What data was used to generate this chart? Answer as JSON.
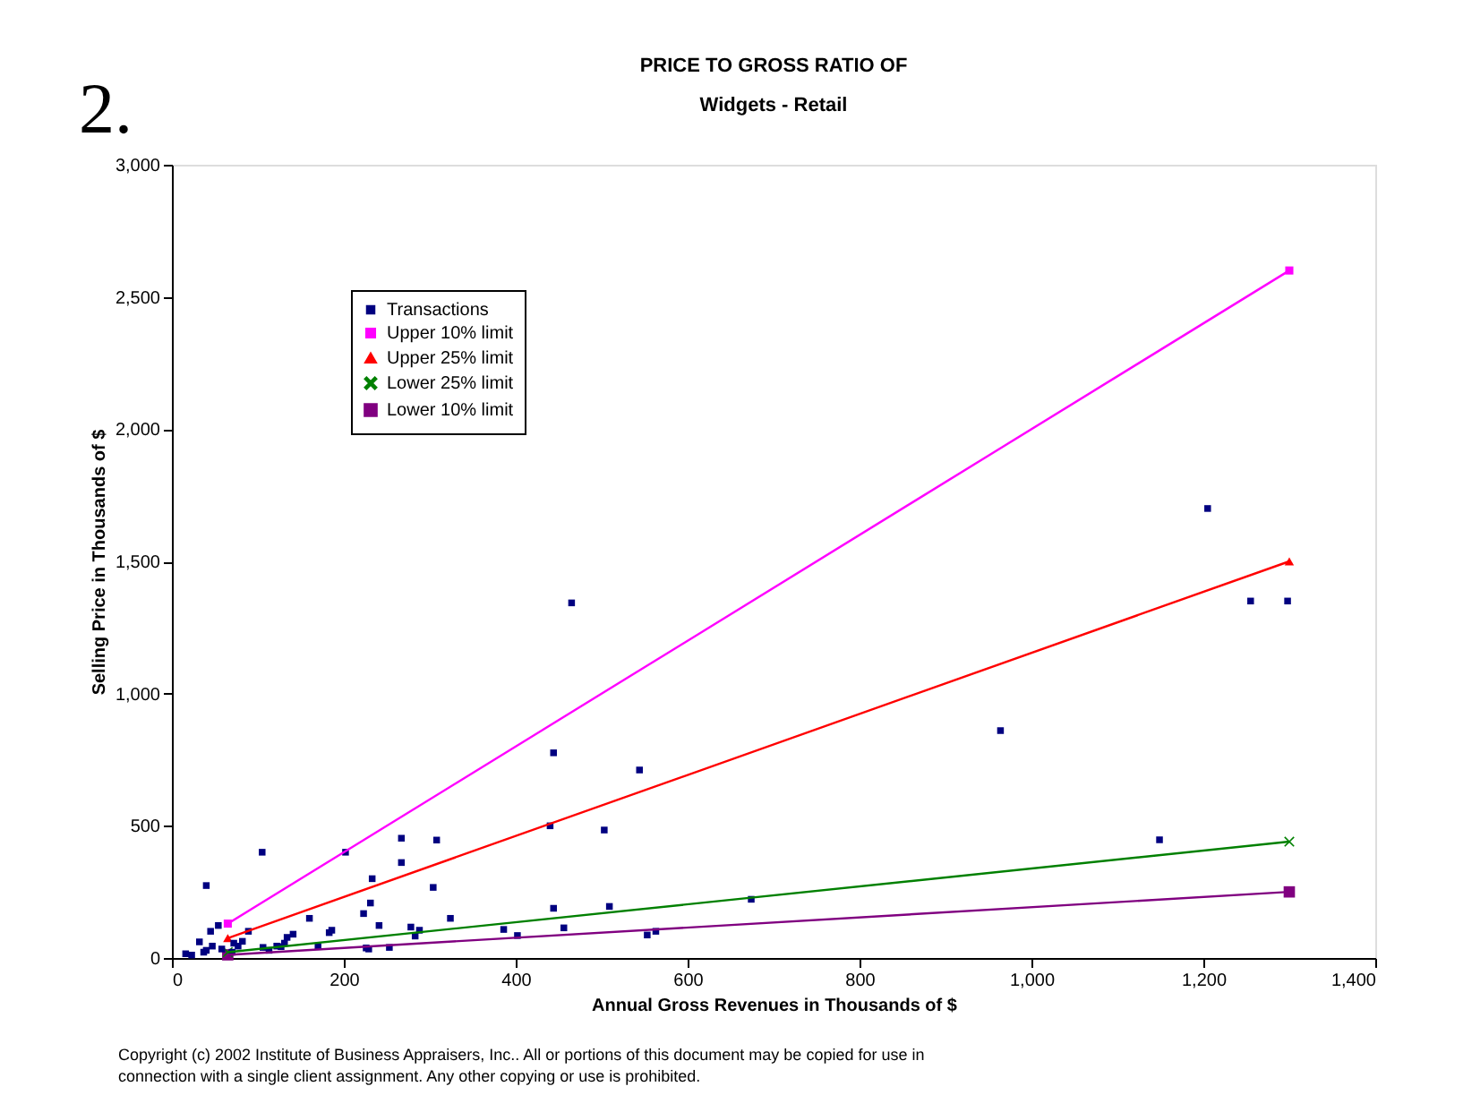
{
  "chart_data": {
    "type": "scatter",
    "title": "PRICE TO GROSS RATIO OF",
    "subtitle": "Widgets - Retail",
    "xlabel": "Annual Gross Revenues in Thousands of $",
    "ylabel": "Selling Price in Thousands of $",
    "xlim": [
      0,
      1400
    ],
    "xticks": [
      0,
      200,
      400,
      600,
      800,
      {
        "value": 1000,
        "label": "1,000"
      },
      {
        "value": 1200,
        "label": "1,200"
      },
      {
        "value": 1400,
        "label": "1,400"
      }
    ],
    "ylim": [
      0,
      3000
    ],
    "yticks": [
      0,
      500,
      {
        "value": 1000,
        "label": "1,000"
      },
      {
        "value": 1500,
        "label": "1,500"
      },
      {
        "value": 2000,
        "label": "2,000"
      },
      {
        "value": 2500,
        "label": "2,500"
      },
      {
        "value": 3000,
        "label": "3,000"
      }
    ],
    "grid": false,
    "legend": "top left",
    "series": [
      {
        "name": "Transactions",
        "marker": "square",
        "color": "#000080",
        "x": [
          105,
          40,
          202,
          267,
          308,
          267,
          233,
          304,
          231,
          223,
          160,
          324,
          241,
          278,
          288,
          283,
          186,
          183,
          170,
          226,
          229,
          253,
          440,
          444,
          465,
          503,
          544,
          444,
          456,
          509,
          386,
          402,
          553,
          563,
          674,
          16,
          23,
          32,
          37,
          40,
          45,
          47,
          54,
          58,
          72,
          77,
          82,
          89,
          106,
          113,
          122,
          131,
          134,
          141,
          127,
          70,
          1205,
          1255,
          1298,
          964,
          1149
        ],
        "values": [
          400,
          274,
          400,
          453,
          446,
          361,
          300,
          267,
          208,
          168,
          150,
          150,
          123,
          117,
          105,
          83,
          105,
          96,
          43,
          38,
          34,
          40,
          500,
          776,
          1343,
          484,
          711,
          188,
          114,
          195,
          108,
          85,
          87,
          101,
          222,
          16,
          11,
          61,
          22,
          29,
          101,
          45,
          123,
          34,
          56,
          45,
          63,
          101,
          40,
          29,
          45,
          56,
          78,
          90,
          43,
          22,
          1700,
          1350,
          1350,
          860,
          447
        ]
      },
      {
        "name": "Upper 10% limit",
        "type": "line",
        "marker": "square",
        "color": "#ff00ff",
        "x": [
          65,
          1300
        ],
        "values": [
          130,
          2600
        ]
      },
      {
        "name": "Upper 25% limit",
        "type": "line",
        "marker": "triangle",
        "color": "#ff0000",
        "x": [
          65,
          1300
        ],
        "values": [
          75,
          1500
        ]
      },
      {
        "name": "Lower 25% limit",
        "type": "line",
        "marker": "cross",
        "color": "#008000",
        "x": [
          65,
          1300
        ],
        "values": [
          22,
          440
        ]
      },
      {
        "name": "Lower 10% limit",
        "type": "line",
        "marker": "square",
        "color": "#800080",
        "x": [
          65,
          1300
        ],
        "values": [
          12,
          250
        ]
      }
    ],
    "annotations": [
      "2.",
      "Copyright (c) 2002 Institute of Business Appraisers, Inc..  All or portions of this document may be copied for use in connection with a single client assignment.  Any other copying or use is prohibited."
    ]
  }
}
